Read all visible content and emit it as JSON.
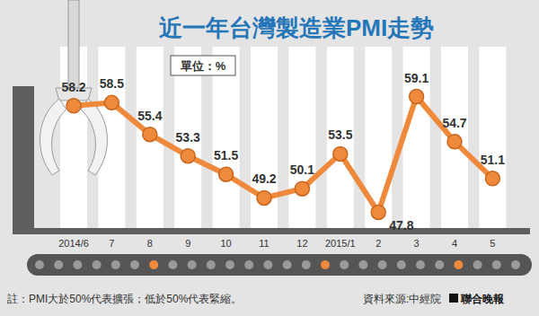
{
  "chart_data": {
    "type": "line",
    "title": "近一年台灣製造業PMI走勢",
    "unit": "單位：%",
    "categories": [
      "2014/6",
      "7",
      "8",
      "9",
      "10",
      "11",
      "12",
      "2015/1",
      "2",
      "3",
      "4",
      "5"
    ],
    "values": [
      58.2,
      58.5,
      55.4,
      53.3,
      51.5,
      49.2,
      50.1,
      53.5,
      47.8,
      59.1,
      54.7,
      51.1
    ],
    "color": "#ef8a3c",
    "marker": "circle",
    "ylim": [
      46,
      63
    ],
    "data_labels": true,
    "tick_labels": "x",
    "footnote": "註：PMI大於50%代表擴張；低於50%代表緊縮。",
    "source": "資料來源:中經院",
    "publisher": "聯合晚報"
  }
}
